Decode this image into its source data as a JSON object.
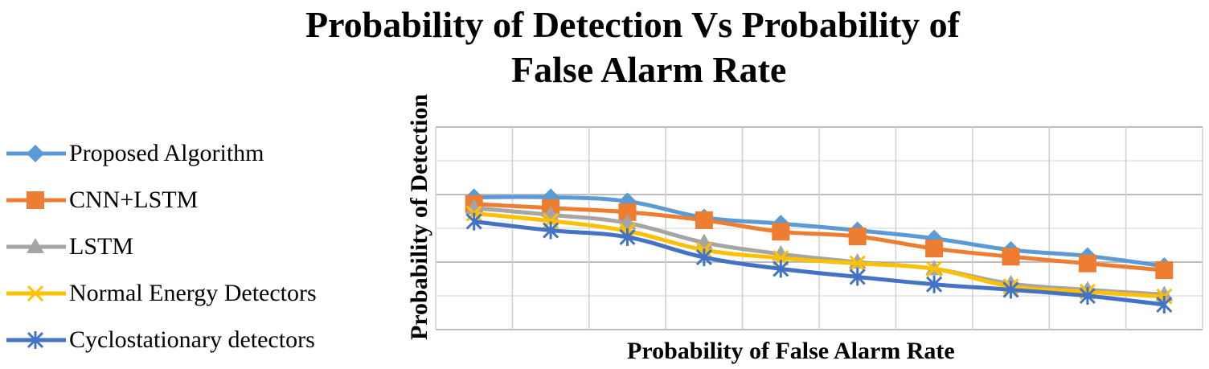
{
  "chart_data": {
    "type": "line",
    "title": "Probability of Detection Vs Probability of False Alarm Rate",
    "title_lines": [
      "Probability of Detection Vs Probability of",
      "False Alarm Rate"
    ],
    "xlabel": "Probability  of False Alarm  Rate",
    "ylabel": "Probability  of Detection",
    "x": [
      1,
      2,
      3,
      4,
      5,
      6,
      7,
      8,
      9,
      10
    ],
    "ylim": [
      0,
      3
    ],
    "grid": true,
    "legend_position": "left",
    "series": [
      {
        "name": "Proposed Algorithm",
        "color": "#5B9BD5",
        "marker": "diamond",
        "values": [
          1.96,
          1.96,
          1.9,
          1.66,
          1.57,
          1.47,
          1.35,
          1.18,
          1.09,
          0.94
        ]
      },
      {
        "name": "CNN+LSTM",
        "color": "#ED7D31",
        "marker": "square",
        "values": [
          1.86,
          1.8,
          1.74,
          1.62,
          1.45,
          1.38,
          1.2,
          1.08,
          0.98,
          0.88
        ]
      },
      {
        "name": "LSTM",
        "color": "#A5A5A5",
        "marker": "triangle",
        "values": [
          1.8,
          1.7,
          1.58,
          1.29,
          1.12,
          1.0,
          0.9,
          0.68,
          0.59,
          0.52
        ]
      },
      {
        "name": "Normal Energy Detectors",
        "color": "#FFC000",
        "marker": "x",
        "values": [
          1.72,
          1.61,
          1.46,
          1.18,
          1.06,
          0.98,
          0.9,
          0.64,
          0.56,
          0.49
        ]
      },
      {
        "name": "Cyclostationary detectors",
        "color": "#4472C4",
        "marker": "star",
        "values": [
          1.6,
          1.47,
          1.37,
          1.07,
          0.9,
          0.78,
          0.67,
          0.59,
          0.5,
          0.37
        ]
      }
    ]
  }
}
